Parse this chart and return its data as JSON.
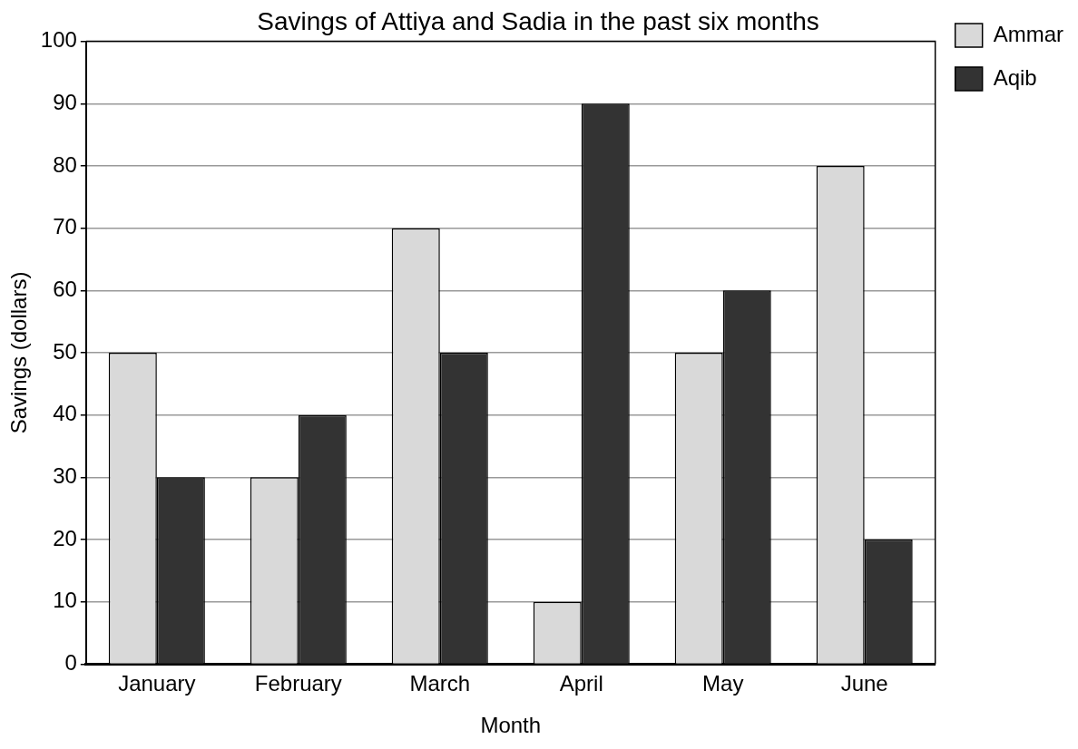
{
  "chart_data": {
    "type": "bar",
    "title": "Savings of Attiya and Sadia in the past six months",
    "xlabel": "Month",
    "ylabel": "Savings (dollars)",
    "categories": [
      "January",
      "February",
      "March",
      "April",
      "May",
      "June"
    ],
    "series": [
      {
        "name": "Ammar",
        "color": "#d9d9d9",
        "values": [
          50,
          30,
          70,
          10,
          50,
          80
        ]
      },
      {
        "name": "Aqib",
        "color": "#333333",
        "values": [
          30,
          40,
          50,
          90,
          60,
          20
        ]
      }
    ],
    "ylim": [
      0,
      100
    ],
    "yticks": [
      0,
      10,
      20,
      30,
      40,
      50,
      60,
      70,
      80,
      90,
      100
    ],
    "grid": "y",
    "legend": "right"
  }
}
